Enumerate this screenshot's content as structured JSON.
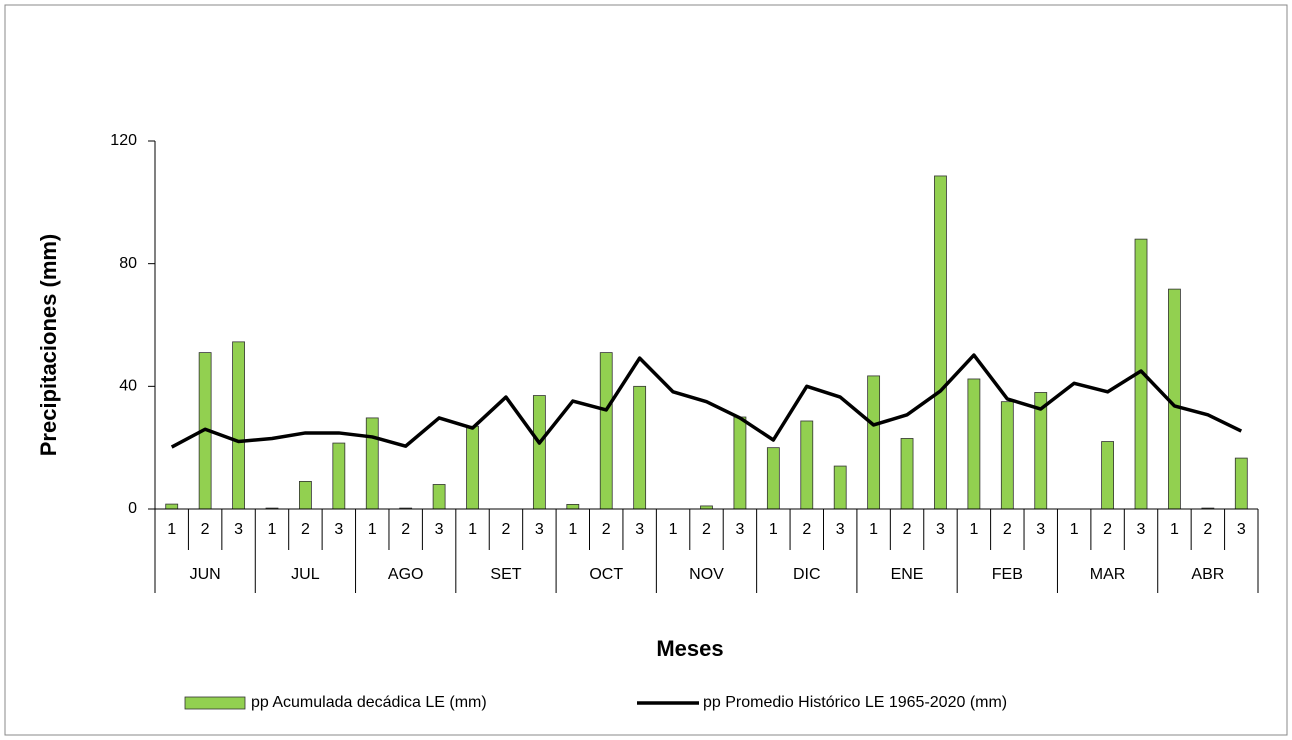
{
  "chart_data": {
    "type": "bar-line",
    "y_label": "Precipitaciones (mm)",
    "x_label": "Meses",
    "categories": [
      "1",
      "2",
      "3",
      "1",
      "2",
      "3",
      "1",
      "2",
      "3",
      "1",
      "2",
      "3",
      "1",
      "2",
      "3",
      "1",
      "2",
      "3",
      "1",
      "2",
      "3",
      "1",
      "2",
      "3",
      "1",
      "2",
      "3",
      "1",
      "2",
      "3",
      "1",
      "2",
      "3"
    ],
    "category_groups": [
      "JUN",
      "JUL",
      "AGO",
      "SET",
      "OCT",
      "NOV",
      "DIC",
      "ENE",
      "FEB",
      "MAR",
      "ABR"
    ],
    "ylim": [
      0,
      120
    ],
    "yticks": [
      0,
      40,
      80,
      120
    ],
    "series": [
      {
        "name": "pp Acumulada decádica LE (mm)",
        "type": "bar",
        "color": "#92d050",
        "values": [
          1.6,
          51,
          54.5,
          0.3,
          9,
          21.5,
          29.7,
          0.3,
          8,
          27,
          0,
          37,
          1.5,
          51,
          40,
          0,
          1,
          30,
          20,
          28.7,
          14,
          43.4,
          23,
          108.6,
          42.4,
          35,
          38,
          0,
          22,
          88,
          71.7,
          0.3,
          16.6
        ]
      },
      {
        "name": "pp Promedio Histórico LE 1965-2020 (mm)",
        "type": "line",
        "color": "#000000",
        "values": [
          20.2,
          26,
          22,
          23,
          24.8,
          24.8,
          23.5,
          20.5,
          29.7,
          26.4,
          36.5,
          21.5,
          35.2,
          32.3,
          49.2,
          38.2,
          35,
          29.7,
          22.5,
          40,
          36.5,
          27.4,
          30.7,
          38.5,
          50.2,
          35.9,
          32.6,
          41,
          38.2,
          45,
          33.6,
          30.7,
          25.4
        ]
      }
    ]
  }
}
